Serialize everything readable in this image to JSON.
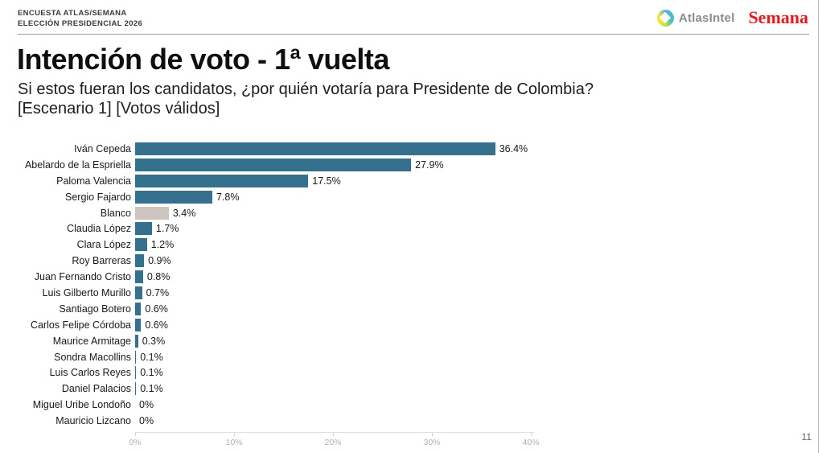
{
  "header": {
    "survey_line1": "ENCUESTA ATLAS/SEMANA",
    "survey_line2": "ELECCIÓN PRESIDENCIAL 2026",
    "atlas_brand": "AtlasIntel",
    "semana_brand": "Semana"
  },
  "title": "Intención de voto - 1ª vuelta",
  "subtitle_line1": "Si estos fueran los candidatos, ¿por quién votaría para Presidente de Colombia?",
  "subtitle_line2": "[Escenario 1] [Votos válidos]",
  "page_number": "11",
  "colors": {
    "bar": "#35708e",
    "blanco_bar": "#ccc5be",
    "semana_red": "#e01b22",
    "atlas_gray": "#8c8c8c"
  },
  "chart_data": {
    "type": "bar",
    "orientation": "horizontal",
    "title": "Intención de voto - 1ª vuelta",
    "subtitle": "Si estos fueran los candidatos, ¿por quién votaría para Presidente de Colombia? [Escenario 1] [Votos válidos]",
    "xlabel": "",
    "ylabel": "",
    "xlim": [
      0,
      40
    ],
    "x_ticks": [
      "0%",
      "10%",
      "20%",
      "30%",
      "40%"
    ],
    "x_tick_values": [
      0,
      10,
      20,
      30,
      40
    ],
    "grid": false,
    "legend": false,
    "categories": [
      "Iván Cepeda",
      "Abelardo de la Espriella",
      "Paloma Valencia",
      "Sergio Fajardo",
      "Blanco",
      "Claudia López",
      "Clara López",
      "Roy Barreras",
      "Juan Fernando Cristo",
      "Luis Gilberto Murillo",
      "Santiago Botero",
      "Carlos Felipe Córdoba",
      "Maurice Armitage",
      "Sondra Macollins",
      "Luis Carlos Reyes",
      "Daniel Palacios",
      "Miguel Uribe Londoño",
      "Mauricio Lizcano"
    ],
    "values": [
      36.4,
      27.9,
      17.5,
      7.8,
      3.4,
      1.7,
      1.2,
      0.9,
      0.8,
      0.7,
      0.6,
      0.6,
      0.3,
      0.1,
      0.1,
      0.1,
      0,
      0
    ],
    "value_labels": [
      "36.4%",
      "27.9%",
      "17.5%",
      "7.8%",
      "3.4%",
      "1.7%",
      "1.2%",
      "0.9%",
      "0.8%",
      "0.7%",
      "0.6%",
      "0.6%",
      "0.3%",
      "0.1%",
      "0.1%",
      "0.1%",
      "0%",
      "0%"
    ],
    "highlight_category": "Blanco"
  }
}
